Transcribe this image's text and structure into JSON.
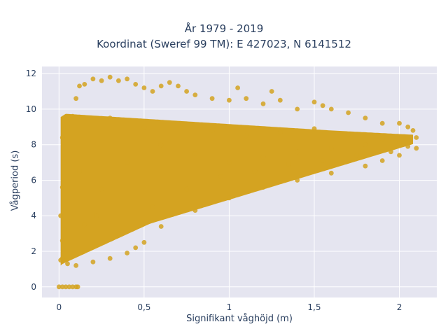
{
  "chart_data": {
    "type": "scatter",
    "title_line1": "År 1979 - 2019",
    "title_line2": "Koordinat (Sweref 99 TM): E 427023, N 6141512",
    "xlabel": "Signifikant våghöjd (m)",
    "ylabel": "Vågperiod (s)",
    "xlim": [
      -0.1,
      2.22
    ],
    "ylim": [
      -0.6,
      12.4
    ],
    "x_ticks": [
      0,
      0.5,
      1,
      1.5,
      2
    ],
    "x_tick_labels": [
      "0",
      "0,5",
      "1",
      "1,5",
      "2"
    ],
    "y_ticks": [
      0,
      2,
      4,
      6,
      8,
      10,
      12
    ],
    "y_tick_labels": [
      "0",
      "2",
      "4",
      "6",
      "8",
      "10",
      "12"
    ],
    "grid": true,
    "marker_color": "#d4a321",
    "background_color": "#e5e5f0",
    "points": [
      [
        0.0,
        0.0
      ],
      [
        0.02,
        0.0
      ],
      [
        0.04,
        0.0
      ],
      [
        0.06,
        0.0
      ],
      [
        0.08,
        0.0
      ],
      [
        0.1,
        0.0
      ],
      [
        0.11,
        0.0
      ],
      [
        0.01,
        1.5
      ],
      [
        0.02,
        2.6
      ],
      [
        0.03,
        3.2
      ],
      [
        0.01,
        4.0
      ],
      [
        0.02,
        5.6
      ],
      [
        0.03,
        7.0
      ],
      [
        0.02,
        8.4
      ],
      [
        0.05,
        9.0
      ],
      [
        0.08,
        9.6
      ],
      [
        0.1,
        10.6
      ],
      [
        0.12,
        11.3
      ],
      [
        0.15,
        11.4
      ],
      [
        0.2,
        11.7
      ],
      [
        0.25,
        11.6
      ],
      [
        0.3,
        11.8
      ],
      [
        0.35,
        11.6
      ],
      [
        0.4,
        11.7
      ],
      [
        0.45,
        11.4
      ],
      [
        0.5,
        11.2
      ],
      [
        0.55,
        11.0
      ],
      [
        0.6,
        11.3
      ],
      [
        0.65,
        11.5
      ],
      [
        0.7,
        11.3
      ],
      [
        0.75,
        11.0
      ],
      [
        0.8,
        10.8
      ],
      [
        0.9,
        10.6
      ],
      [
        1.0,
        10.5
      ],
      [
        1.05,
        11.2
      ],
      [
        1.1,
        10.6
      ],
      [
        1.2,
        10.3
      ],
      [
        1.25,
        11.0
      ],
      [
        1.3,
        10.5
      ],
      [
        1.4,
        10.0
      ],
      [
        1.5,
        10.4
      ],
      [
        1.55,
        10.2
      ],
      [
        1.6,
        10.0
      ],
      [
        1.7,
        9.8
      ],
      [
        1.8,
        9.5
      ],
      [
        1.9,
        9.2
      ],
      [
        2.0,
        9.2
      ],
      [
        2.05,
        9.0
      ],
      [
        2.08,
        8.8
      ],
      [
        2.1,
        8.4
      ],
      [
        2.1,
        7.8
      ],
      [
        2.0,
        7.4
      ],
      [
        1.9,
        7.1
      ],
      [
        1.8,
        6.8
      ],
      [
        1.6,
        6.4
      ],
      [
        1.4,
        6.0
      ],
      [
        1.2,
        5.6
      ],
      [
        1.0,
        5.0
      ],
      [
        0.8,
        4.3
      ],
      [
        0.6,
        3.4
      ],
      [
        0.5,
        2.5
      ],
      [
        0.45,
        2.2
      ],
      [
        0.4,
        1.9
      ],
      [
        0.3,
        1.6
      ],
      [
        0.2,
        1.4
      ],
      [
        0.1,
        1.2
      ],
      [
        0.05,
        1.3
      ],
      [
        0.02,
        1.6
      ],
      [
        0.15,
        3.5
      ],
      [
        0.25,
        5.5
      ],
      [
        0.4,
        7.0
      ],
      [
        0.6,
        8.0
      ],
      [
        0.8,
        7.5
      ],
      [
        1.0,
        7.0
      ],
      [
        1.2,
        7.3
      ],
      [
        1.4,
        7.6
      ],
      [
        1.6,
        7.8
      ],
      [
        1.8,
        8.0
      ],
      [
        2.0,
        8.1
      ],
      [
        0.3,
        9.5
      ],
      [
        0.5,
        9.0
      ],
      [
        0.7,
        9.2
      ],
      [
        0.9,
        8.8
      ],
      [
        1.1,
        8.5
      ],
      [
        1.3,
        8.7
      ],
      [
        1.5,
        8.9
      ],
      [
        1.7,
        8.6
      ],
      [
        1.9,
        8.3
      ],
      [
        0.12,
        6.5
      ],
      [
        0.22,
        4.0
      ],
      [
        0.35,
        3.0
      ],
      [
        0.55,
        4.5
      ],
      [
        0.75,
        5.5
      ],
      [
        0.95,
        6.2
      ],
      [
        1.15,
        6.5
      ],
      [
        1.35,
        6.9
      ],
      [
        1.55,
        7.1
      ],
      [
        1.75,
        7.4
      ],
      [
        1.95,
        7.6
      ],
      [
        2.05,
        7.9
      ]
    ]
  }
}
